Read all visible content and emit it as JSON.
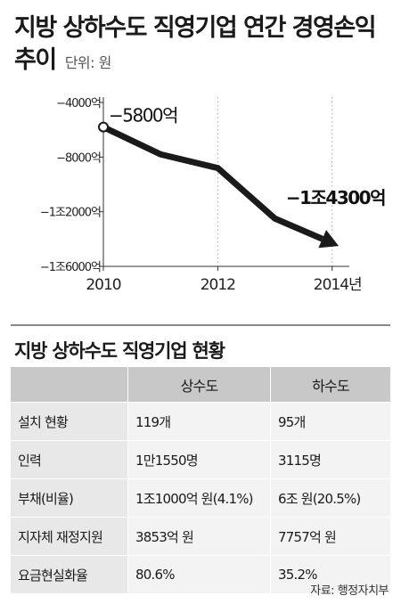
{
  "title": {
    "line1": "지방 상하수도 직영기업 연간 경영손익",
    "line2": "추이",
    "unit": "단위: 원"
  },
  "chart_data": {
    "type": "line",
    "x": [
      2010,
      2011,
      2012,
      2013,
      2014
    ],
    "xticks": [
      "2010",
      "2012",
      "2014년"
    ],
    "xtick_values": [
      2010,
      2012,
      2014
    ],
    "yticks": [
      "−4000억",
      "−8000억",
      "−1조2000억",
      "−1조6000억"
    ],
    "ytick_values": [
      -4000,
      -8000,
      -12000,
      -16000
    ],
    "ylim": [
      -16000,
      -4000
    ],
    "xlim": [
      2010,
      2014.3
    ],
    "series": [
      {
        "values": [
          -5800,
          -7800,
          -8800,
          -12500,
          -14300
        ]
      }
    ],
    "annotations": {
      "start": "−5800억",
      "end": "−1조4300억"
    },
    "grid": "vertical-dotted",
    "line_color": "#1a1a1a"
  },
  "table": {
    "title": "지방 상하수도 직영기업 현황",
    "headers": [
      "",
      "상수도",
      "하수도"
    ],
    "rows": [
      {
        "label": "설치 현황",
        "water": "119개",
        "sewer": "95개"
      },
      {
        "label": "인력",
        "water": "1만1550명",
        "sewer": "3115명"
      },
      {
        "label": "부채(비율)",
        "water": "1조1000억 원(4.1%)",
        "sewer": "6조 원(20.5%)"
      },
      {
        "label": "지자체 재정지원",
        "water": "3853억 원",
        "sewer": "7757억 원"
      },
      {
        "label": "요금현실화율",
        "water": "80.6%",
        "sewer": "35.2%"
      }
    ]
  },
  "source": "자료: 행정자치부"
}
